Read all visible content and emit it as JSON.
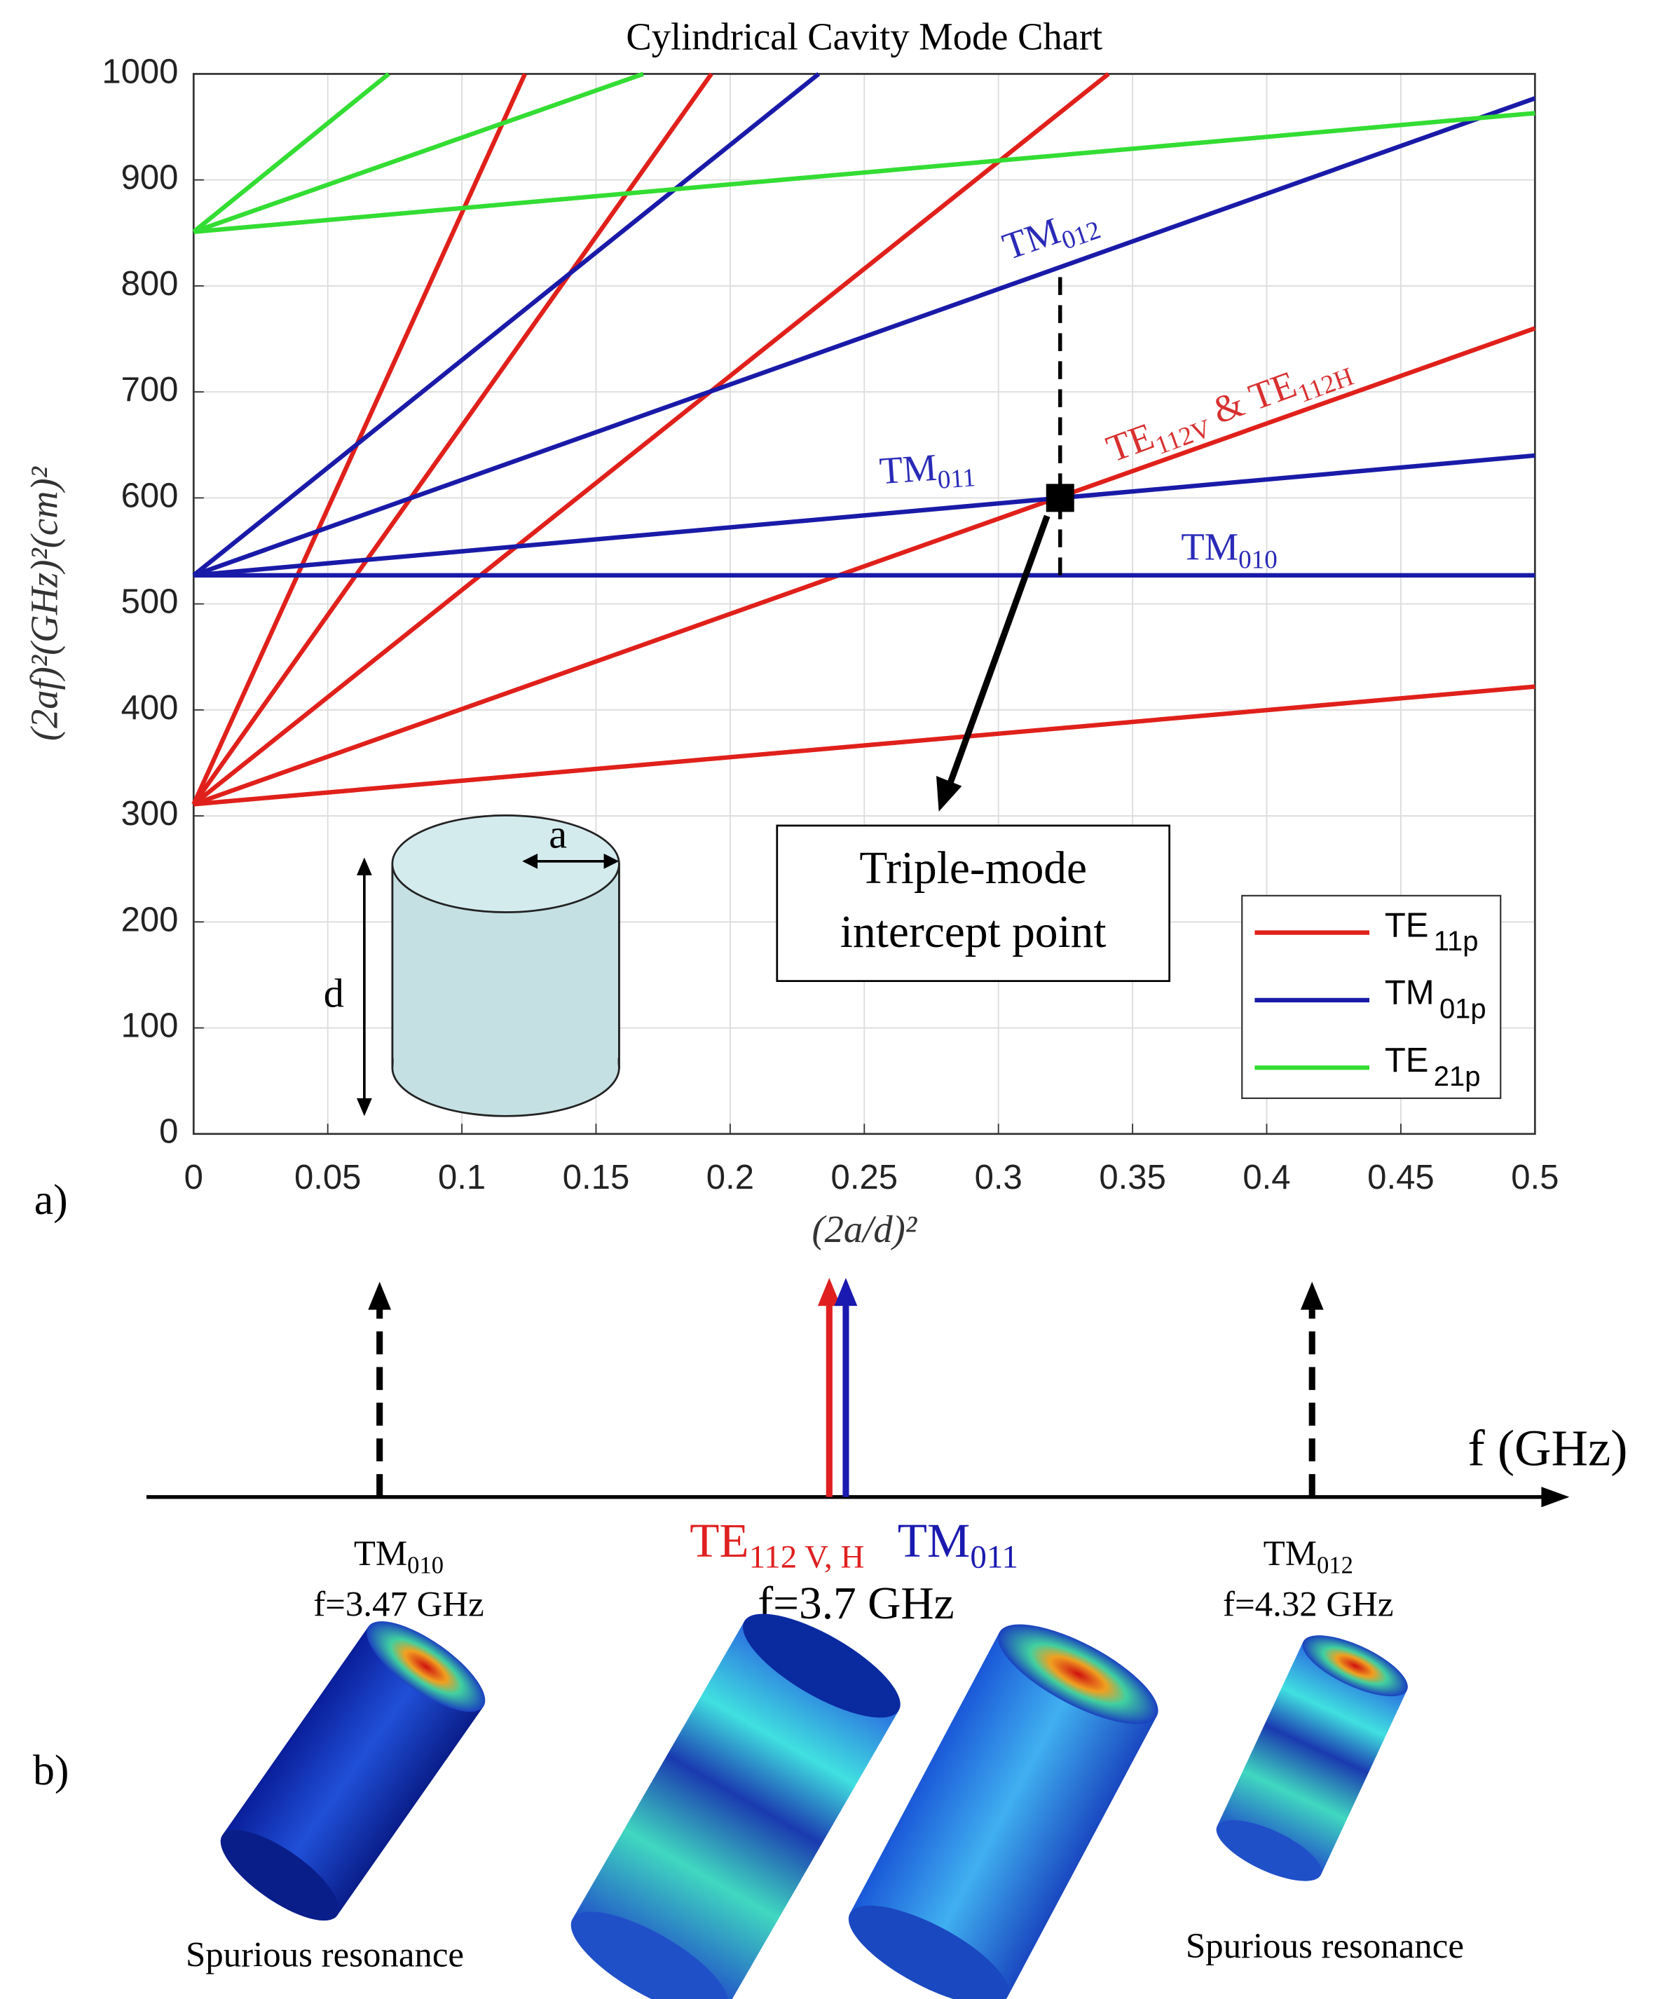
{
  "chart_data": {
    "type": "line",
    "title": "Cylindrical Cavity Mode Chart",
    "xlabel": "(2a/d)²",
    "ylabel": "(2af)²(GHz)²(cm)²",
    "xlim": [
      0,
      0.5
    ],
    "ylim": [
      0,
      1000
    ],
    "xticks": [
      0,
      0.05,
      0.1,
      0.15,
      0.2,
      0.25,
      0.3,
      0.35,
      0.4,
      0.45,
      0.5
    ],
    "yticks": [
      0,
      100,
      200,
      300,
      400,
      500,
      600,
      700,
      800,
      900,
      1000
    ],
    "grid": true,
    "series": [
      {
        "color": "#e0201b",
        "x": [
          0,
          0.5
        ],
        "values": [
          311,
          422
        ]
      },
      {
        "color": "#e0201b",
        "x": [
          0,
          0.5
        ],
        "values": [
          311,
          760
        ]
      },
      {
        "color": "#e0201b",
        "x": [
          0,
          0.341
        ],
        "values": [
          311,
          1000
        ]
      },
      {
        "color": "#e0201b",
        "x": [
          0,
          0.193
        ],
        "values": [
          311,
          1000
        ]
      },
      {
        "color": "#e0201b",
        "x": [
          0,
          0.1235
        ],
        "values": [
          311,
          1000
        ]
      },
      {
        "color": "#1a1aa8",
        "x": [
          0,
          0.5
        ],
        "values": [
          527,
          527
        ]
      },
      {
        "color": "#1a1aa8",
        "x": [
          0,
          0.5
        ],
        "values": [
          527,
          640
        ]
      },
      {
        "color": "#1a1aa8",
        "x": [
          0,
          0.5
        ],
        "values": [
          527,
          977
        ]
      },
      {
        "color": "#1a1aa8",
        "x": [
          0,
          0.233
        ],
        "values": [
          527,
          1000
        ]
      },
      {
        "color": "#33dd33",
        "x": [
          0,
          0.5
        ],
        "values": [
          851,
          963
        ]
      },
      {
        "color": "#33dd33",
        "x": [
          0,
          0.1676
        ],
        "values": [
          851,
          1000
        ]
      },
      {
        "color": "#33dd33",
        "x": [
          0,
          0.0727
        ],
        "values": [
          851,
          1000
        ]
      }
    ],
    "legend": {
      "position": "lower right",
      "entries": [
        {
          "text": "TE",
          "sub": "11p",
          "color": "#e0201b"
        },
        {
          "text": "TM",
          "sub": "01p",
          "color": "#1a1aa8"
        },
        {
          "text": "TE",
          "sub": "21p",
          "color": "#33dd33"
        }
      ]
    },
    "annotations": [
      {
        "color": "#2a2ab8",
        "parts": [
          {
            "text": "TM",
            "sub": "012"
          }
        ]
      },
      {
        "color": "#2a2ab8",
        "parts": [
          {
            "text": "TM",
            "sub": "011"
          }
        ]
      },
      {
        "color": "#2a2ab8",
        "parts": [
          {
            "text": "TM",
            "sub": "010"
          }
        ]
      },
      {
        "color": "#d83030",
        "parts": [
          {
            "text": "TE",
            "sub": "112V"
          },
          {
            "text": " & TE",
            "sub": "112H"
          }
        ]
      }
    ],
    "intercept": {
      "x": 0.323,
      "y": 600,
      "guide_y": [
        527,
        815
      ]
    },
    "callout": [
      "Triple-mode",
      "intercept point"
    ]
  },
  "inset": {
    "a": "a",
    "d": "d"
  },
  "panel_labels": [
    "a)",
    "b)"
  ],
  "spectrum": {
    "axis_label": "f (GHz)",
    "modes": [
      {
        "parts": [
          {
            "text": "TM",
            "sub": "010",
            "color": "#000000"
          }
        ],
        "freq": "f=3.47 GHz",
        "note": "Spurious resonance"
      },
      {
        "parts": [
          {
            "text": "TE",
            "sub": "112 V, H",
            "color": "#e02020"
          },
          {
            "text": "TM",
            "sub": "011",
            "color": "#1a1ab0"
          }
        ],
        "freq": "f=3.7 GHz"
      },
      {
        "parts": [
          {
            "text": "TM",
            "sub": "012",
            "color": "#000000"
          }
        ],
        "freq": "f=4.32 GHz",
        "note": "Spurious resonance"
      }
    ]
  }
}
